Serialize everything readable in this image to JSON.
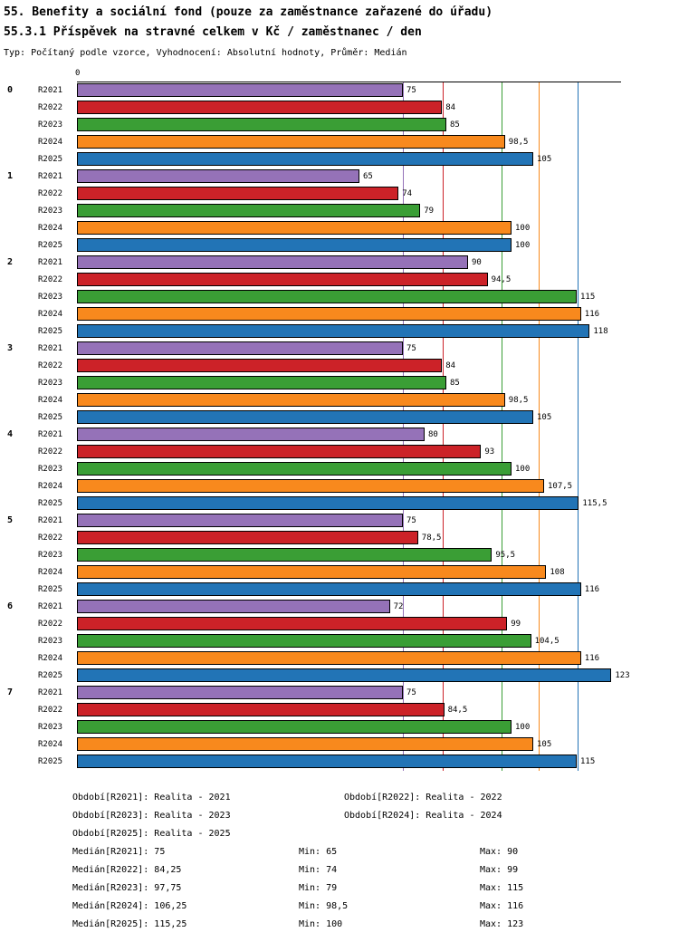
{
  "header": {
    "title_line1": "55. Benefity a sociální fond (pouze za zaměstnance zařazené do úřadu)",
    "title_line2": "55.3.1 Příspěvek na stravné celkem v Kč / zaměstnanec / den",
    "subtitle": "Typ: Počítaný podle vzorce, Vyhodnocení: Absolutní hodnoty, Průměr: Medián"
  },
  "chart_data": {
    "type": "bar",
    "orientation": "horizontal",
    "title": "55.3.1 Příspěvek na stravné celkem v Kč / zaměstnanec / den",
    "grid": false,
    "legend_position": "bottom",
    "x_axis": {
      "min": 0,
      "max": 125,
      "origin_label": "0"
    },
    "categories": [
      "0",
      "1",
      "2",
      "3",
      "4",
      "5",
      "6",
      "7"
    ],
    "series_order": [
      "R2021",
      "R2022",
      "R2023",
      "R2024",
      "R2025"
    ],
    "series_colors": {
      "R2021": "#9572b8",
      "R2022": "#cc2228",
      "R2023": "#3a9e35",
      "R2024": "#f8891d",
      "R2025": "#2274b6"
    },
    "median_lines": [
      {
        "series": "R2021",
        "value": 75
      },
      {
        "series": "R2022",
        "value": 84.25
      },
      {
        "series": "R2023",
        "value": 97.75
      },
      {
        "series": "R2024",
        "value": 106.25
      },
      {
        "series": "R2025",
        "value": 115.25
      }
    ],
    "series": [
      {
        "name": "R2021",
        "values": [
          75,
          65,
          90,
          75,
          80,
          75,
          72,
          75
        ]
      },
      {
        "name": "R2022",
        "values": [
          84,
          74,
          94.5,
          84,
          93,
          78.5,
          99,
          84.5
        ]
      },
      {
        "name": "R2023",
        "values": [
          85,
          79,
          115,
          85,
          100,
          95.5,
          104.5,
          100
        ]
      },
      {
        "name": "R2024",
        "values": [
          98.5,
          100,
          116,
          98.5,
          107.5,
          108,
          116,
          105
        ]
      },
      {
        "name": "R2025",
        "values": [
          105,
          100,
          118,
          105,
          115.5,
          116,
          123,
          115
        ]
      }
    ],
    "groups": [
      {
        "label": "0",
        "bars": [
          {
            "series": "R2021",
            "value": 75,
            "display": "75"
          },
          {
            "series": "R2022",
            "value": 84,
            "display": "84"
          },
          {
            "series": "R2023",
            "value": 85,
            "display": "85"
          },
          {
            "series": "R2024",
            "value": 98.5,
            "display": "98,5"
          },
          {
            "series": "R2025",
            "value": 105,
            "display": "105"
          }
        ]
      },
      {
        "label": "1",
        "bars": [
          {
            "series": "R2021",
            "value": 65,
            "display": "65"
          },
          {
            "series": "R2022",
            "value": 74,
            "display": "74"
          },
          {
            "series": "R2023",
            "value": 79,
            "display": "79"
          },
          {
            "series": "R2024",
            "value": 100,
            "display": "100"
          },
          {
            "series": "R2025",
            "value": 100,
            "display": "100"
          }
        ]
      },
      {
        "label": "2",
        "bars": [
          {
            "series": "R2021",
            "value": 90,
            "display": "90"
          },
          {
            "series": "R2022",
            "value": 94.5,
            "display": "94,5"
          },
          {
            "series": "R2023",
            "value": 115,
            "display": "115"
          },
          {
            "series": "R2024",
            "value": 116,
            "display": "116"
          },
          {
            "series": "R2025",
            "value": 118,
            "display": "118"
          }
        ]
      },
      {
        "label": "3",
        "bars": [
          {
            "series": "R2021",
            "value": 75,
            "display": "75"
          },
          {
            "series": "R2022",
            "value": 84,
            "display": "84"
          },
          {
            "series": "R2023",
            "value": 85,
            "display": "85"
          },
          {
            "series": "R2024",
            "value": 98.5,
            "display": "98,5"
          },
          {
            "series": "R2025",
            "value": 105,
            "display": "105"
          }
        ]
      },
      {
        "label": "4",
        "bars": [
          {
            "series": "R2021",
            "value": 80,
            "display": "80"
          },
          {
            "series": "R2022",
            "value": 93,
            "display": "93"
          },
          {
            "series": "R2023",
            "value": 100,
            "display": "100"
          },
          {
            "series": "R2024",
            "value": 107.5,
            "display": "107,5"
          },
          {
            "series": "R2025",
            "value": 115.5,
            "display": "115,5"
          }
        ]
      },
      {
        "label": "5",
        "bars": [
          {
            "series": "R2021",
            "value": 75,
            "display": "75"
          },
          {
            "series": "R2022",
            "value": 78.5,
            "display": "78,5"
          },
          {
            "series": "R2023",
            "value": 95.5,
            "display": "95,5"
          },
          {
            "series": "R2024",
            "value": 108,
            "display": "108"
          },
          {
            "series": "R2025",
            "value": 116,
            "display": "116"
          }
        ]
      },
      {
        "label": "6",
        "bars": [
          {
            "series": "R2021",
            "value": 72,
            "display": "72"
          },
          {
            "series": "R2022",
            "value": 99,
            "display": "99"
          },
          {
            "series": "R2023",
            "value": 104.5,
            "display": "104,5"
          },
          {
            "series": "R2024",
            "value": 116,
            "display": "116"
          },
          {
            "series": "R2025",
            "value": 123,
            "display": "123"
          }
        ]
      },
      {
        "label": "7",
        "bars": [
          {
            "series": "R2021",
            "value": 75,
            "display": "75"
          },
          {
            "series": "R2022",
            "value": 84.5,
            "display": "84,5"
          },
          {
            "series": "R2023",
            "value": 100,
            "display": "100"
          },
          {
            "series": "R2024",
            "value": 105,
            "display": "105"
          },
          {
            "series": "R2025",
            "value": 115,
            "display": "115"
          }
        ]
      }
    ]
  },
  "legend": {
    "items": [
      "Období[R2021]: Realita - 2021",
      "Období[R2022]: Realita - 2022",
      "Období[R2023]: Realita - 2023",
      "Období[R2024]: Realita - 2024",
      "Období[R2025]: Realita - 2025"
    ]
  },
  "stats": {
    "rows": [
      {
        "median": "Medián[R2021]: 75",
        "min": "Min: 65",
        "max": "Max: 90"
      },
      {
        "median": "Medián[R2022]: 84,25",
        "min": "Min: 74",
        "max": "Max: 99"
      },
      {
        "median": "Medián[R2023]: 97,75",
        "min": "Min: 79",
        "max": "Max: 115"
      },
      {
        "median": "Medián[R2024]: 106,25",
        "min": "Min: 98,5",
        "max": "Max: 116"
      },
      {
        "median": "Medián[R2025]: 115,25",
        "min": "Min: 100",
        "max": "Max: 123"
      }
    ]
  }
}
